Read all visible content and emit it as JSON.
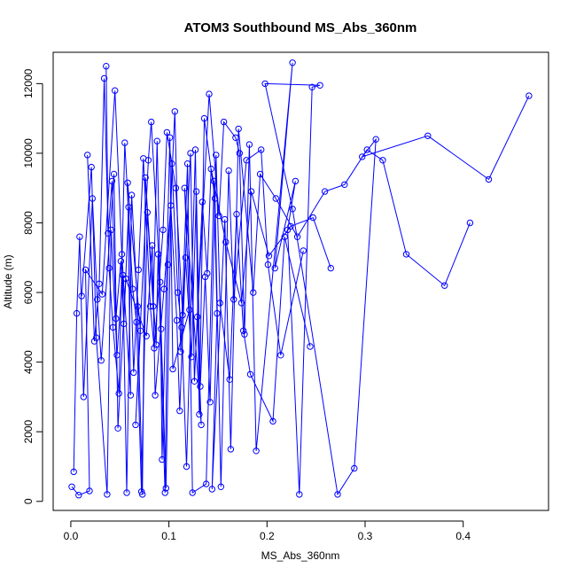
{
  "chart_data": {
    "type": "scatter",
    "title": "ATOM3 Southbound MS_Abs_360nm",
    "xlabel": "MS_Abs_360nm",
    "ylabel": "Altitude (m)",
    "xlim": [
      -0.018,
      0.487
    ],
    "ylim": [
      -260,
      12900
    ],
    "xticks": [
      0.0,
      0.1,
      0.2,
      0.3,
      0.4
    ],
    "xtick_labels": [
      "0.0",
      "0.1",
      "0.2",
      "0.3",
      "0.4"
    ],
    "yticks": [
      0,
      2000,
      4000,
      6000,
      8000,
      10000,
      12000
    ],
    "ytick_labels": [
      "0",
      "2000",
      "4000",
      "6000",
      "8000",
      "10000",
      "12000"
    ],
    "grid": false,
    "legend": "none",
    "series_style": {
      "color": "#0000ff",
      "marker": "open-circle",
      "line": "connected in sequence"
    },
    "series": [
      {
        "x": [
          0.001,
          0.008,
          0.019,
          0.015,
          0.032,
          0.045,
          0.052,
          0.061,
          0.058,
          0.071,
          0.066,
          0.079,
          0.082,
          0.091,
          0.093,
          0.101,
          0.104,
          0.121,
          0.116,
          0.133,
          0.129,
          0.141,
          0.151,
          0.156,
          0.168,
          0.172,
          0.177,
          0.182,
          0.189,
          0.226,
          0.208,
          0.229,
          0.221,
          0.233,
          0.246,
          0.254,
          0.198,
          0.226,
          0.272,
          0.289,
          0.311,
          0.297,
          0.364,
          0.426,
          0.467
        ],
        "y": [
          420,
          180,
          300,
          6650,
          5950,
          11800,
          7100,
          3050,
          9150,
          4900,
          2200,
          9800,
          10900,
          6300,
          1200,
          10450,
          3800,
          5500,
          9000,
          2200,
          5300,
          11700,
          8200,
          10900,
          10450,
          10000,
          4800,
          10250,
          1450,
          12600,
          6700,
          9200,
          7800,
          200,
          11900,
          11950,
          12000,
          8400,
          200,
          950,
          10400,
          9900,
          10500,
          9250,
          11650
        ]
      },
      {
        "x": [
          0.011,
          0.021,
          0.026,
          0.037,
          0.041,
          0.047,
          0.053,
          0.057,
          0.062,
          0.068,
          0.073,
          0.076,
          0.087,
          0.089,
          0.096,
          0.099,
          0.106,
          0.112,
          0.119,
          0.124,
          0.138,
          0.146,
          0.149,
          0.144,
          0.157,
          0.163,
          0.171,
          0.186,
          0.193,
          0.209,
          0.231,
          0.259,
          0.279,
          0.302,
          0.318,
          0.342,
          0.381,
          0.407
        ],
        "y": [
          5900,
          9600,
          4700,
          200,
          7800,
          4200,
          6500,
          250,
          8800,
          5600,
          200,
          9300,
          4500,
          7100,
          250,
          6800,
          11200,
          4300,
          9700,
          250,
          500,
          9200,
          5400,
          350,
          8100,
          1500,
          10700,
          6000,
          9400,
          8700,
          7600,
          8900,
          9100,
          10100,
          9800,
          7100,
          6200,
          8000
        ]
      },
      {
        "x": [
          0.017,
          0.024,
          0.029,
          0.034,
          0.039,
          0.043,
          0.049,
          0.055,
          0.063,
          0.067,
          0.072,
          0.078,
          0.084,
          0.088,
          0.092,
          0.097,
          0.103,
          0.109,
          0.113,
          0.118,
          0.127,
          0.131,
          0.136,
          0.147,
          0.153,
          0.161,
          0.166,
          0.179,
          0.194,
          0.201,
          0.214,
          0.237
        ],
        "y": [
          9950,
          4600,
          6250,
          12150,
          6700,
          5000,
          3100,
          10300,
          6100,
          5150,
          280,
          8300,
          5600,
          10350,
          4950,
          380,
          9700,
          6000,
          5000,
          1000,
          10100,
          2500,
          11000,
          8700,
          420,
          9500,
          5800,
          9800,
          10100,
          6800,
          4200,
          7200
        ]
      },
      {
        "x": [
          0.036,
          0.038,
          0.042,
          0.046,
          0.051,
          0.054,
          0.059,
          0.064,
          0.069,
          0.074,
          0.081,
          0.085,
          0.094,
          0.098,
          0.107,
          0.114,
          0.122,
          0.126,
          0.134,
          0.139,
          0.143,
          0.158,
          0.174,
          0.184,
          0.202,
          0.224,
          0.247,
          0.265
        ],
        "y": [
          12500,
          7700,
          9200,
          5250,
          6900,
          5100,
          8450,
          3700,
          6650,
          9850,
          5600,
          4400,
          7800,
          10600,
          9000,
          5350,
          10000,
          3450,
          8600,
          6550,
          9550,
          7450,
          5700,
          8900,
          7050,
          7900,
          8150,
          6700
        ]
      },
      {
        "x": [
          0.003,
          0.006,
          0.009,
          0.013,
          0.022,
          0.027,
          0.031,
          0.044,
          0.048,
          0.056,
          0.077,
          0.083,
          0.086,
          0.095,
          0.102,
          0.108,
          0.111,
          0.117,
          0.123,
          0.128,
          0.132,
          0.137,
          0.142,
          0.148,
          0.152,
          0.162,
          0.169,
          0.176,
          0.183,
          0.206,
          0.218,
          0.244
        ],
        "y": [
          850,
          5400,
          7600,
          3000,
          8700,
          5800,
          4050,
          9400,
          2100,
          6400,
          4750,
          7350,
          3050,
          6100,
          8500,
          5200,
          2600,
          7000,
          4150,
          8900,
          3300,
          6450,
          2850,
          9950,
          5700,
          3500,
          8250,
          4900,
          3650,
          2300,
          7600,
          4450
        ]
      }
    ]
  }
}
